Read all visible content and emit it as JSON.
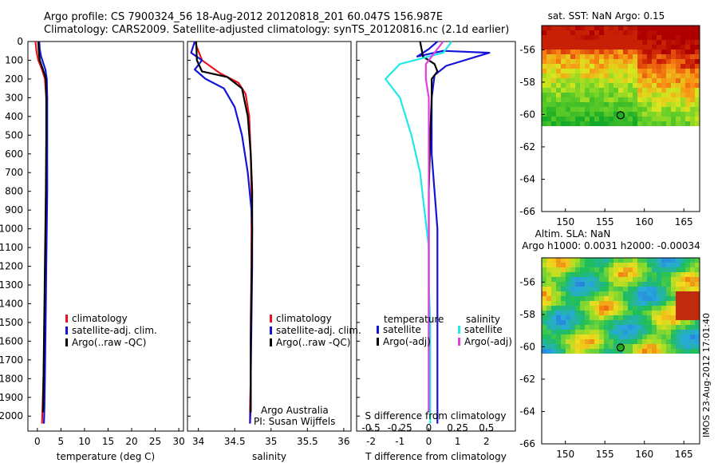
{
  "header": {
    "line1": "Argo profile: CS 7900324_56 18-Aug-2012 20120818_201 60.047S 156.987E",
    "line2": "Climatology: CARS2009. Satellite-adjusted climatology: synTS_20120816.nc (2.1d earlier)"
  },
  "footer_stamp": "IMOS 23-Aug-2012 17:01:40",
  "colors": {
    "red": "#e8141c",
    "blue": "#1414d8",
    "black": "#000000",
    "cyan": "#20e8e8",
    "magenta": "#e040e0"
  },
  "chart_data": [
    {
      "type": "line",
      "id": "temperature",
      "xlabel": "temperature (deg C)",
      "ylabel": "",
      "xlim": [
        -2,
        31
      ],
      "ylim": [
        2080,
        0
      ],
      "y_reversed": true,
      "xticks": [
        0,
        5,
        10,
        15,
        20,
        25,
        30
      ],
      "yticks": [
        0,
        100,
        200,
        300,
        400,
        500,
        600,
        700,
        800,
        900,
        1000,
        1100,
        1200,
        1300,
        1400,
        1500,
        1600,
        1700,
        1800,
        1900,
        2000
      ],
      "legend": [
        "climatology",
        "satellite-adj. clim.",
        "Argo(..raw -QC)"
      ],
      "series": [
        {
          "name": "climatology",
          "color": "red",
          "x": [
            -0.4,
            -0.2,
            0.2,
            1.0,
            1.6,
            1.9,
            2.0,
            2.0,
            1.9,
            1.8,
            1.7,
            1.5,
            1.3,
            1.1,
            1.0
          ],
          "y": [
            0,
            50,
            100,
            150,
            200,
            300,
            500,
            800,
            1000,
            1200,
            1400,
            1600,
            1800,
            1950,
            2040
          ]
        },
        {
          "name": "satellite-adj. clim.",
          "color": "blue",
          "x": [
            0.4,
            0.5,
            0.8,
            1.7,
            2.0,
            2.1,
            2.1,
            2.1,
            2.0,
            1.9,
            1.8,
            1.7,
            1.6,
            1.5,
            1.4
          ],
          "y": [
            0,
            40,
            80,
            150,
            200,
            300,
            500,
            800,
            1000,
            1200,
            1400,
            1600,
            1800,
            1950,
            2040
          ]
        },
        {
          "name": "Argo(..raw -QC)",
          "color": "black",
          "x": [
            0.2,
            0.3,
            0.5,
            1.2,
            1.8,
            1.9,
            1.9,
            1.8,
            1.7,
            1.6,
            1.5,
            1.4,
            1.3,
            1.2
          ],
          "y": [
            0,
            50,
            100,
            150,
            200,
            300,
            500,
            800,
            1000,
            1200,
            1400,
            1600,
            1800,
            1980
          ]
        }
      ]
    },
    {
      "type": "line",
      "id": "salinity",
      "xlabel": "salinity",
      "xlim": [
        33.85,
        36.1
      ],
      "ylim": [
        2080,
        0
      ],
      "y_reversed": true,
      "xticks": [
        34,
        34.5,
        35,
        35.5,
        36
      ],
      "legend": [
        "climatology",
        "satellite-adj. clim.",
        "Argo(..raw -QC)"
      ],
      "annotation": [
        "Argo Australia",
        "PI: Susan Wijffels"
      ],
      "series": [
        {
          "name": "climatology",
          "color": "red",
          "x": [
            33.95,
            34.05,
            34.3,
            34.55,
            34.65,
            34.7,
            34.72,
            34.73,
            34.73,
            34.73,
            34.72,
            34.72,
            34.71,
            34.71
          ],
          "y": [
            0,
            100,
            170,
            220,
            280,
            400,
            600,
            800,
            1000,
            1200,
            1500,
            1800,
            1950,
            2040
          ]
        },
        {
          "name": "satellite-adj. clim.",
          "color": "blue",
          "x": [
            33.95,
            33.9,
            34.05,
            33.95,
            34.1,
            34.35,
            34.5,
            34.6,
            34.68,
            34.73,
            34.74,
            34.74,
            34.73,
            34.72,
            34.72,
            34.71
          ],
          "y": [
            0,
            60,
            100,
            150,
            200,
            250,
            350,
            500,
            700,
            900,
            1000,
            1200,
            1500,
            1800,
            1950,
            2040
          ]
        },
        {
          "name": "Argo(..raw -QC)",
          "color": "black",
          "x": [
            33.97,
            33.98,
            34.05,
            34.4,
            34.6,
            34.68,
            34.72,
            34.74,
            34.74,
            34.73,
            34.72,
            34.72
          ],
          "y": [
            0,
            100,
            160,
            190,
            250,
            400,
            600,
            800,
            1000,
            1300,
            1600,
            1980
          ]
        }
      ]
    },
    {
      "type": "line",
      "id": "difference",
      "xlabel": "T difference from climatology",
      "xlabel2": "S difference from climatology",
      "xlim": [
        -2.5,
        3.0
      ],
      "ylim": [
        2080,
        0
      ],
      "y_reversed": true,
      "xticks": [
        -2,
        -1,
        0,
        1,
        2
      ],
      "xticks2": [
        "-0.5",
        "-0.25",
        "0",
        "0.25",
        "0.5"
      ],
      "legend_temperature_title": "temperature",
      "legend_salinity_title": "salinity",
      "legend_temperature": [
        "satellite",
        "Argo(-adj)"
      ],
      "legend_salinity": [
        "satellite",
        "Argo(-adj)"
      ],
      "series": [
        {
          "name": "temperature satellite",
          "color": "blue",
          "x": [
            0.3,
            0.0,
            -0.4,
            0.5,
            2.1,
            0.6,
            0.2,
            0.1,
            0.1,
            0.2,
            0.3,
            0.3,
            0.3,
            0.3,
            0.3,
            0.3
          ],
          "y": [
            0,
            40,
            80,
            50,
            60,
            130,
            180,
            300,
            600,
            800,
            1000,
            1300,
            1500,
            1800,
            1950,
            2040
          ]
        },
        {
          "name": "temperature Argo(-adj)",
          "color": "black",
          "x": [
            -0.3,
            -0.2,
            0.2,
            0.3,
            0.1,
            0.1,
            0.05,
            0.0,
            0.0,
            0.0,
            0.0
          ],
          "y": [
            0,
            80,
            120,
            160,
            200,
            300,
            500,
            800,
            1200,
            1600,
            1980
          ]
        },
        {
          "name": "salinity satellite",
          "color": "cyan",
          "x": [
            0.8,
            0.5,
            -1.0,
            -1.5,
            -1.0,
            -0.6,
            -0.3,
            -0.15,
            0.0,
            0.0,
            0.05,
            0.05,
            0.05
          ],
          "y": [
            0,
            60,
            120,
            200,
            300,
            500,
            700,
            900,
            1100,
            1300,
            1500,
            1800,
            2040
          ]
        },
        {
          "name": "salinity Argo(-adj)",
          "color": "magenta",
          "x": [
            0.5,
            0.2,
            -0.1,
            -0.1,
            0.0,
            0.0,
            0.0,
            0.0,
            0.0,
            0.0
          ],
          "y": [
            0,
            60,
            120,
            200,
            300,
            500,
            800,
            1200,
            1600,
            1980
          ]
        }
      ]
    },
    {
      "type": "heatmap",
      "id": "sst_map",
      "title": "sat. SST: NaN Argo: 0.15",
      "xlim": [
        147,
        167
      ],
      "ylim": [
        -66,
        -54.5
      ],
      "xticks": [
        150,
        155,
        160,
        165
      ],
      "yticks": [
        -56,
        -58,
        -60,
        -62,
        -64,
        -66
      ],
      "marker": {
        "lon": 156.987,
        "lat": -60.047
      }
    },
    {
      "type": "heatmap",
      "id": "sla_map",
      "title": "Altim. SLA: NaN",
      "subtitle": "Argo h1000: 0.0031 h2000: -0.00034",
      "xlim": [
        147,
        167
      ],
      "ylim": [
        -66,
        -54.5
      ],
      "xticks": [
        150,
        155,
        160,
        165
      ],
      "yticks": [
        -56,
        -58,
        -60,
        -62,
        -64,
        -66
      ],
      "marker": {
        "lon": 156.987,
        "lat": -60.047
      }
    }
  ]
}
